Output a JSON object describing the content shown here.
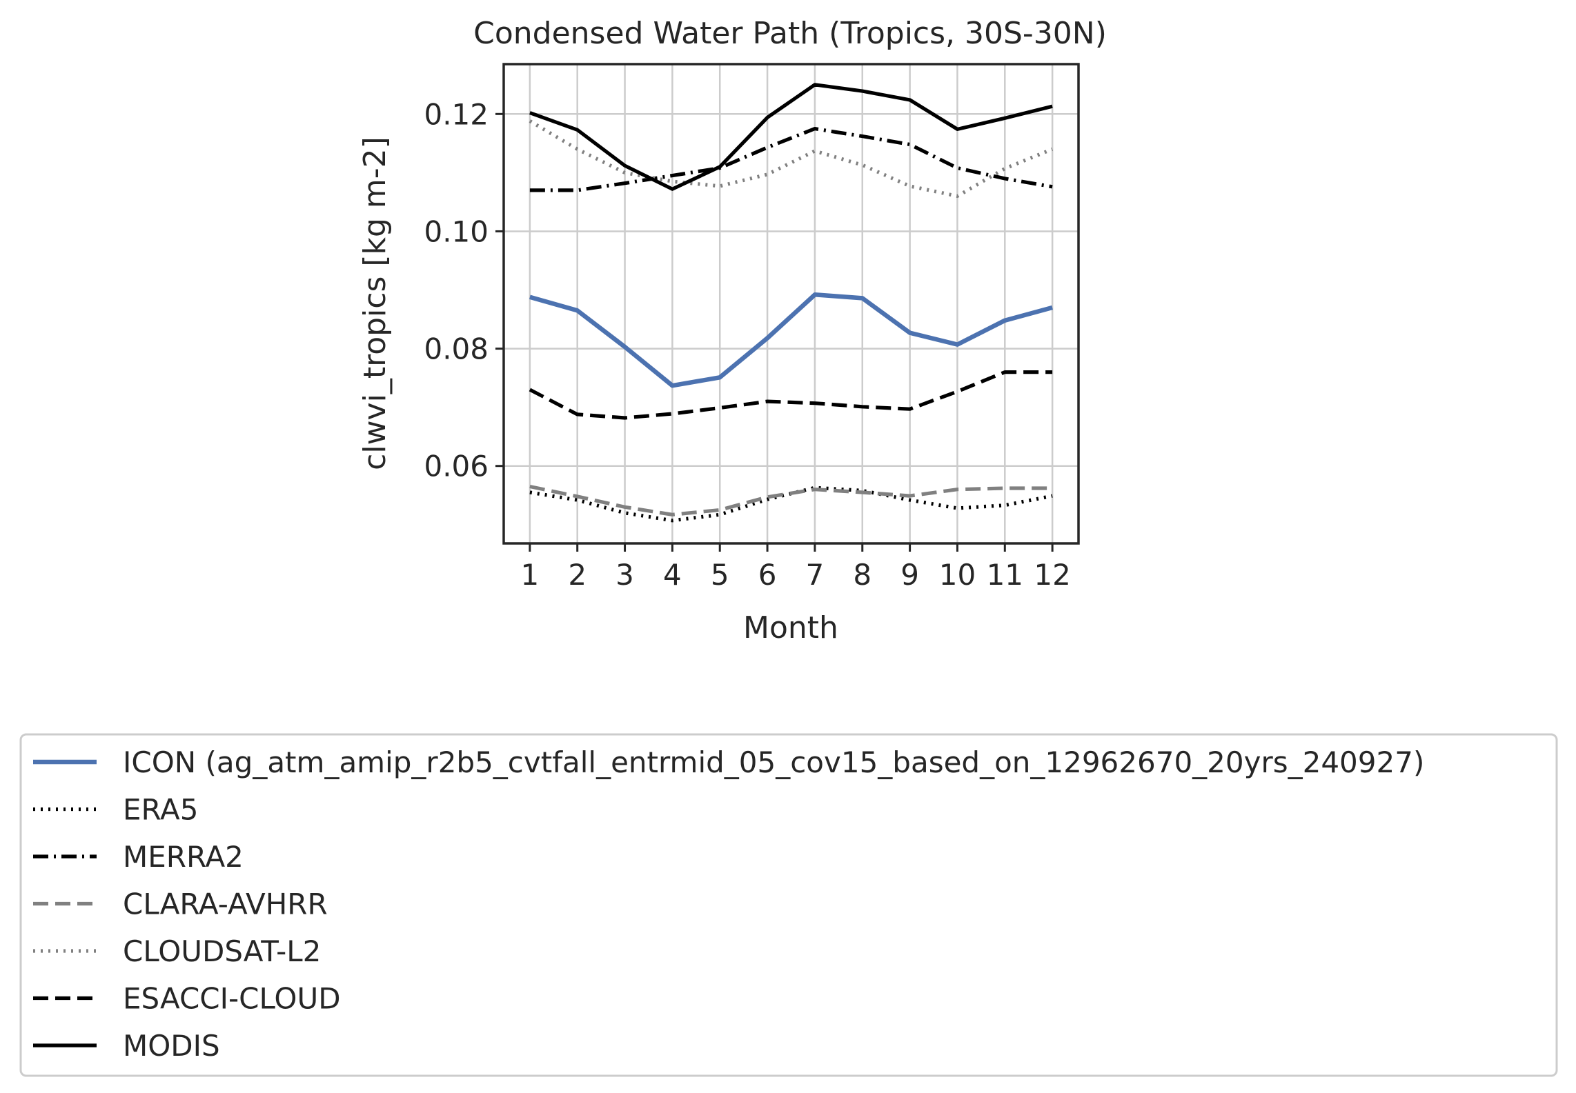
{
  "chart_data": {
    "type": "line",
    "title": "Condensed Water Path (Tropics, 30S-30N)",
    "xlabel": "Month",
    "ylabel": "clwvi_tropics [kg m-2]",
    "x": [
      1,
      2,
      3,
      4,
      5,
      6,
      7,
      8,
      9,
      10,
      11,
      12
    ],
    "x_tick_labels": [
      "1",
      "2",
      "3",
      "4",
      "5",
      "6",
      "7",
      "8",
      "9",
      "10",
      "11",
      "12"
    ],
    "xlim": [
      0.45,
      12.55
    ],
    "ylim": [
      0.0468,
      0.1285
    ],
    "y_ticks": [
      0.06,
      0.08,
      0.1,
      0.12
    ],
    "y_tick_labels": [
      "0.06",
      "0.08",
      "0.10",
      "0.12"
    ],
    "grid": true,
    "legend_placement": "below plot",
    "series": [
      {
        "name": "ICON (ag_atm_amip_r2b5_cvtfall_entrmid_05_cov15_based_on_12962670_20yrs_240927)",
        "color": "#4c72b0",
        "style": "solid",
        "values": [
          0.0888,
          0.0865,
          0.0803,
          0.0737,
          0.0751,
          0.0818,
          0.0892,
          0.0886,
          0.0827,
          0.0807,
          0.0848,
          0.087
        ]
      },
      {
        "name": "ERA5",
        "color": "#000000",
        "style": "dotted",
        "values": [
          0.0555,
          0.0542,
          0.052,
          0.0507,
          0.0517,
          0.0543,
          0.0563,
          0.0558,
          0.0542,
          0.0528,
          0.0533,
          0.0549
        ]
      },
      {
        "name": "MERRA2",
        "color": "#000000",
        "style": "dashdot",
        "values": [
          0.107,
          0.107,
          0.1082,
          0.1095,
          0.1108,
          0.1143,
          0.1175,
          0.1162,
          0.1148,
          0.1108,
          0.109,
          0.1076
        ]
      },
      {
        "name": "CLARA-AVHRR",
        "color": "#808080",
        "style": "dashed",
        "values": [
          0.0565,
          0.0548,
          0.053,
          0.0517,
          0.0525,
          0.0547,
          0.056,
          0.0555,
          0.0549,
          0.056,
          0.0562,
          0.0562
        ]
      },
      {
        "name": "CLOUDSAT-L2",
        "color": "#808080",
        "style": "dotted",
        "values": [
          0.1188,
          0.114,
          0.11,
          0.1085,
          0.1077,
          0.1097,
          0.1137,
          0.1113,
          0.1077,
          0.106,
          0.1107,
          0.114
        ]
      },
      {
        "name": "ESACCI-CLOUD",
        "color": "#000000",
        "style": "dashed",
        "values": [
          0.073,
          0.0688,
          0.0682,
          0.0689,
          0.0699,
          0.071,
          0.0707,
          0.0701,
          0.0697,
          0.0727,
          0.076,
          0.076
        ]
      },
      {
        "name": "MODIS",
        "color": "#000000",
        "style": "solid",
        "values": [
          0.1202,
          0.1173,
          0.1112,
          0.1072,
          0.111,
          0.1194,
          0.125,
          0.1239,
          0.1224,
          0.1174,
          0.1193,
          0.1213
        ]
      }
    ]
  }
}
